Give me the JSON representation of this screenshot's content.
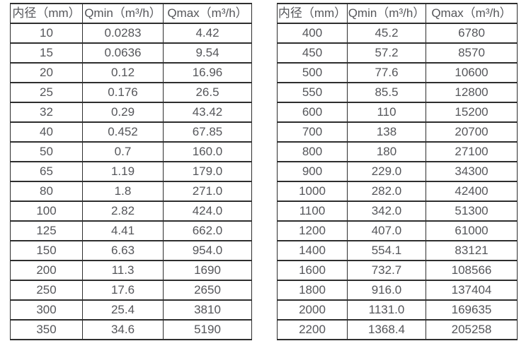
{
  "colors": {
    "border": "#2e2e2e",
    "text": "#55565a",
    "background": "#ffffff"
  },
  "tables": [
    {
      "name": "flow-table-left",
      "headers": [
        "内径（mm）",
        "Qmin（m³/h）",
        "Qmax（m³/h）"
      ],
      "rows": [
        [
          "10",
          "0.0283",
          "4.42"
        ],
        [
          "15",
          "0.0636",
          "9.54"
        ],
        [
          "20",
          "0.12",
          "16.96"
        ],
        [
          "25",
          "0.176",
          "26.5"
        ],
        [
          "32",
          "0.29",
          "43.42"
        ],
        [
          "40",
          "0.452",
          "67.85"
        ],
        [
          "50",
          "0.7",
          "160.0"
        ],
        [
          "65",
          "1.19",
          "179.0"
        ],
        [
          "80",
          "1.8",
          "271.0"
        ],
        [
          "100",
          "2.82",
          "424.0"
        ],
        [
          "125",
          "4.41",
          "662.0"
        ],
        [
          "150",
          "6.63",
          "954.0"
        ],
        [
          "200",
          "11.3",
          "1690"
        ],
        [
          "250",
          "17.6",
          "2650"
        ],
        [
          "300",
          "25.4",
          "3810"
        ],
        [
          "350",
          "34.6",
          "5190"
        ]
      ]
    },
    {
      "name": "flow-table-right",
      "headers": [
        "内径（mm）",
        "Qmin（m³/h）",
        "Qmax（m³/h）"
      ],
      "rows": [
        [
          "400",
          "45.2",
          "6780"
        ],
        [
          "450",
          "57.2",
          "8570"
        ],
        [
          "500",
          "77.6",
          "10600"
        ],
        [
          "550",
          "85.5",
          "12800"
        ],
        [
          "600",
          "110",
          "15200"
        ],
        [
          "700",
          "138",
          "20700"
        ],
        [
          "800",
          "180",
          "27100"
        ],
        [
          "900",
          "229.0",
          "34300"
        ],
        [
          "1000",
          "282.0",
          "42400"
        ],
        [
          "1100",
          "342.0",
          "51300"
        ],
        [
          "1200",
          "407.0",
          "61000"
        ],
        [
          "1400",
          "554.1",
          "83121"
        ],
        [
          "1600",
          "732.7",
          "108566"
        ],
        [
          "1800",
          "916.0",
          "137404"
        ],
        [
          "2000",
          "1131.0",
          "169635"
        ],
        [
          "2200",
          "1368.4",
          "205258"
        ]
      ]
    }
  ]
}
